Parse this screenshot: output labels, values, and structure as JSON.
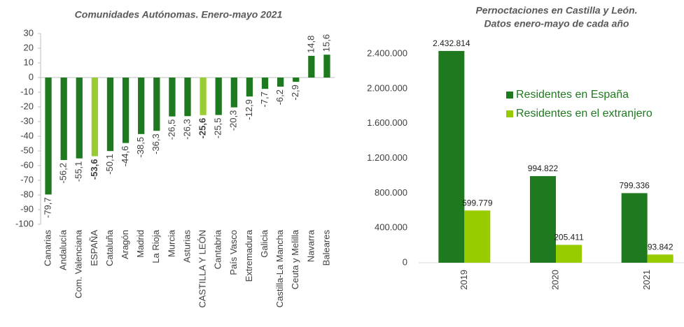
{
  "chart_data": [
    {
      "type": "bar",
      "title": "Comunidades Autónomas. Enero-mayo 2021",
      "categories": [
        "Canarias",
        "Andalucía",
        "Com. Valenciana",
        "ESPAÑA",
        "Cataluña",
        "Aragón",
        "Madrid",
        "La Rioja",
        "Murcia",
        "Asturias",
        "CASTILLA Y LEÓN",
        "Cantabria",
        "País Vasco",
        "Extremadura",
        "Galicia",
        "Castilla-La Mancha",
        "Ceuta y Melilla",
        "Navarra",
        "Baleares"
      ],
      "values": [
        -79.7,
        -56.2,
        -55.1,
        -53.6,
        -50.1,
        -44.6,
        -38.5,
        -36.3,
        -26.5,
        -26.3,
        -25.6,
        -25.5,
        -20.3,
        -12.9,
        -7.7,
        -6.2,
        -2.9,
        14.8,
        15.6
      ],
      "value_labels": [
        "-79,7",
        "-56,2",
        "-55,1",
        "-53,6",
        "-50,1",
        "-44,6",
        "-38,5",
        "-36,3",
        "-26,5",
        "-26,3",
        "-25,6",
        "-25,5",
        "-20,3",
        "-12,9",
        "-7,7",
        "-6,2",
        "-2,9",
        "14,8",
        "15,6"
      ],
      "color": "#1f7a1f",
      "colors": [
        "#1f7a1f",
        "#1f7a1f",
        "#1f7a1f",
        "#99cc33",
        "#1f7a1f",
        "#1f7a1f",
        "#1f7a1f",
        "#1f7a1f",
        "#1f7a1f",
        "#1f7a1f",
        "#99cc33",
        "#1f7a1f",
        "#1f7a1f",
        "#1f7a1f",
        "#1f7a1f",
        "#1f7a1f",
        "#1f7a1f",
        "#1f7a1f",
        "#1f7a1f"
      ],
      "ylim": [
        -100,
        30
      ],
      "yticks": [
        30,
        20,
        10,
        0,
        -10,
        -20,
        -30,
        -40,
        -50,
        -60,
        -70,
        -80,
        -90,
        -100
      ],
      "grid": false
    },
    {
      "type": "grouped_bar",
      "title": [
        "Pernoctaciones en Castilla y León.",
        "Datos enero-mayo de cada año"
      ],
      "categories": [
        "2019",
        "2020",
        "2021"
      ],
      "series": [
        {
          "name": "Residentes en España",
          "color": "#1f7a1f",
          "values": [
            2432814,
            994822,
            799336
          ],
          "value_labels": [
            "2.432.814",
            "994.822",
            "799.336"
          ]
        },
        {
          "name": "Residentes en el extranjero",
          "color": "#99cc00",
          "values": [
            599779,
            205411,
            93842
          ],
          "value_labels": [
            "599.779",
            "205.411",
            "93.842"
          ]
        }
      ],
      "ylim": [
        0,
        2400000
      ],
      "yticks": [
        0,
        {
          "value": 400000,
          "label": "400.000"
        },
        {
          "value": 800000,
          "label": "800.000"
        },
        {
          "value": 1200000,
          "label": "1.200.000"
        },
        {
          "value": 1600000,
          "label": "1.600.000"
        },
        {
          "value": 2000000,
          "label": "2.000.000"
        },
        {
          "value": 2400000,
          "label": "2.400.000"
        }
      ],
      "grid": false,
      "legend": "upper-right"
    }
  ]
}
